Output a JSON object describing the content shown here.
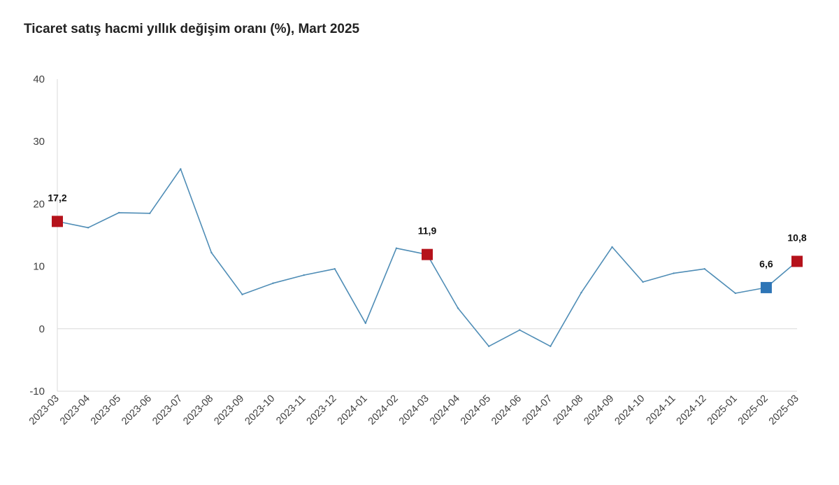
{
  "chart_data": {
    "type": "line",
    "title": "Ticaret satış hacmi yıllık değişim oranı (%), Mart 2025",
    "xlabel": "",
    "ylabel": "",
    "categories": [
      "2023-03",
      "2023-04",
      "2023-05",
      "2023-06",
      "2023-07",
      "2023-08",
      "2023-09",
      "2023-10",
      "2023-11",
      "2023-12",
      "2024-01",
      "2024-02",
      "2024-03",
      "2024-04",
      "2024-05",
      "2024-06",
      "2024-07",
      "2024-08",
      "2024-09",
      "2024-10",
      "2024-11",
      "2024-12",
      "2025-01",
      "2025-02",
      "2025-03"
    ],
    "series": [
      {
        "values": [
          17.2,
          16.2,
          18.6,
          18.5,
          25.6,
          12.2,
          5.5,
          7.3,
          8.6,
          9.6,
          0.9,
          12.9,
          11.9,
          3.3,
          -2.8,
          -0.2,
          -2.8,
          5.8,
          13.1,
          7.5,
          8.9,
          9.6,
          5.7,
          6.6,
          10.8
        ]
      }
    ],
    "ylim": [
      -10,
      40
    ],
    "yticks": [
      "-10",
      "0",
      "10",
      "20",
      "30",
      "40"
    ],
    "grid": false,
    "legend": "none",
    "line_color": "#4f8db6",
    "zero_line_color": "#d9d9d9",
    "axis_color": "#d9d9d9",
    "highlights": [
      {
        "category": "2023-03",
        "label": "17,2",
        "color": "#b5121b"
      },
      {
        "category": "2024-03",
        "label": "11,9",
        "color": "#b5121b"
      },
      {
        "category": "2025-02",
        "label": "6,6",
        "color": "#2e75b6"
      },
      {
        "category": "2025-03",
        "label": "10,8",
        "color": "#b5121b"
      }
    ]
  }
}
